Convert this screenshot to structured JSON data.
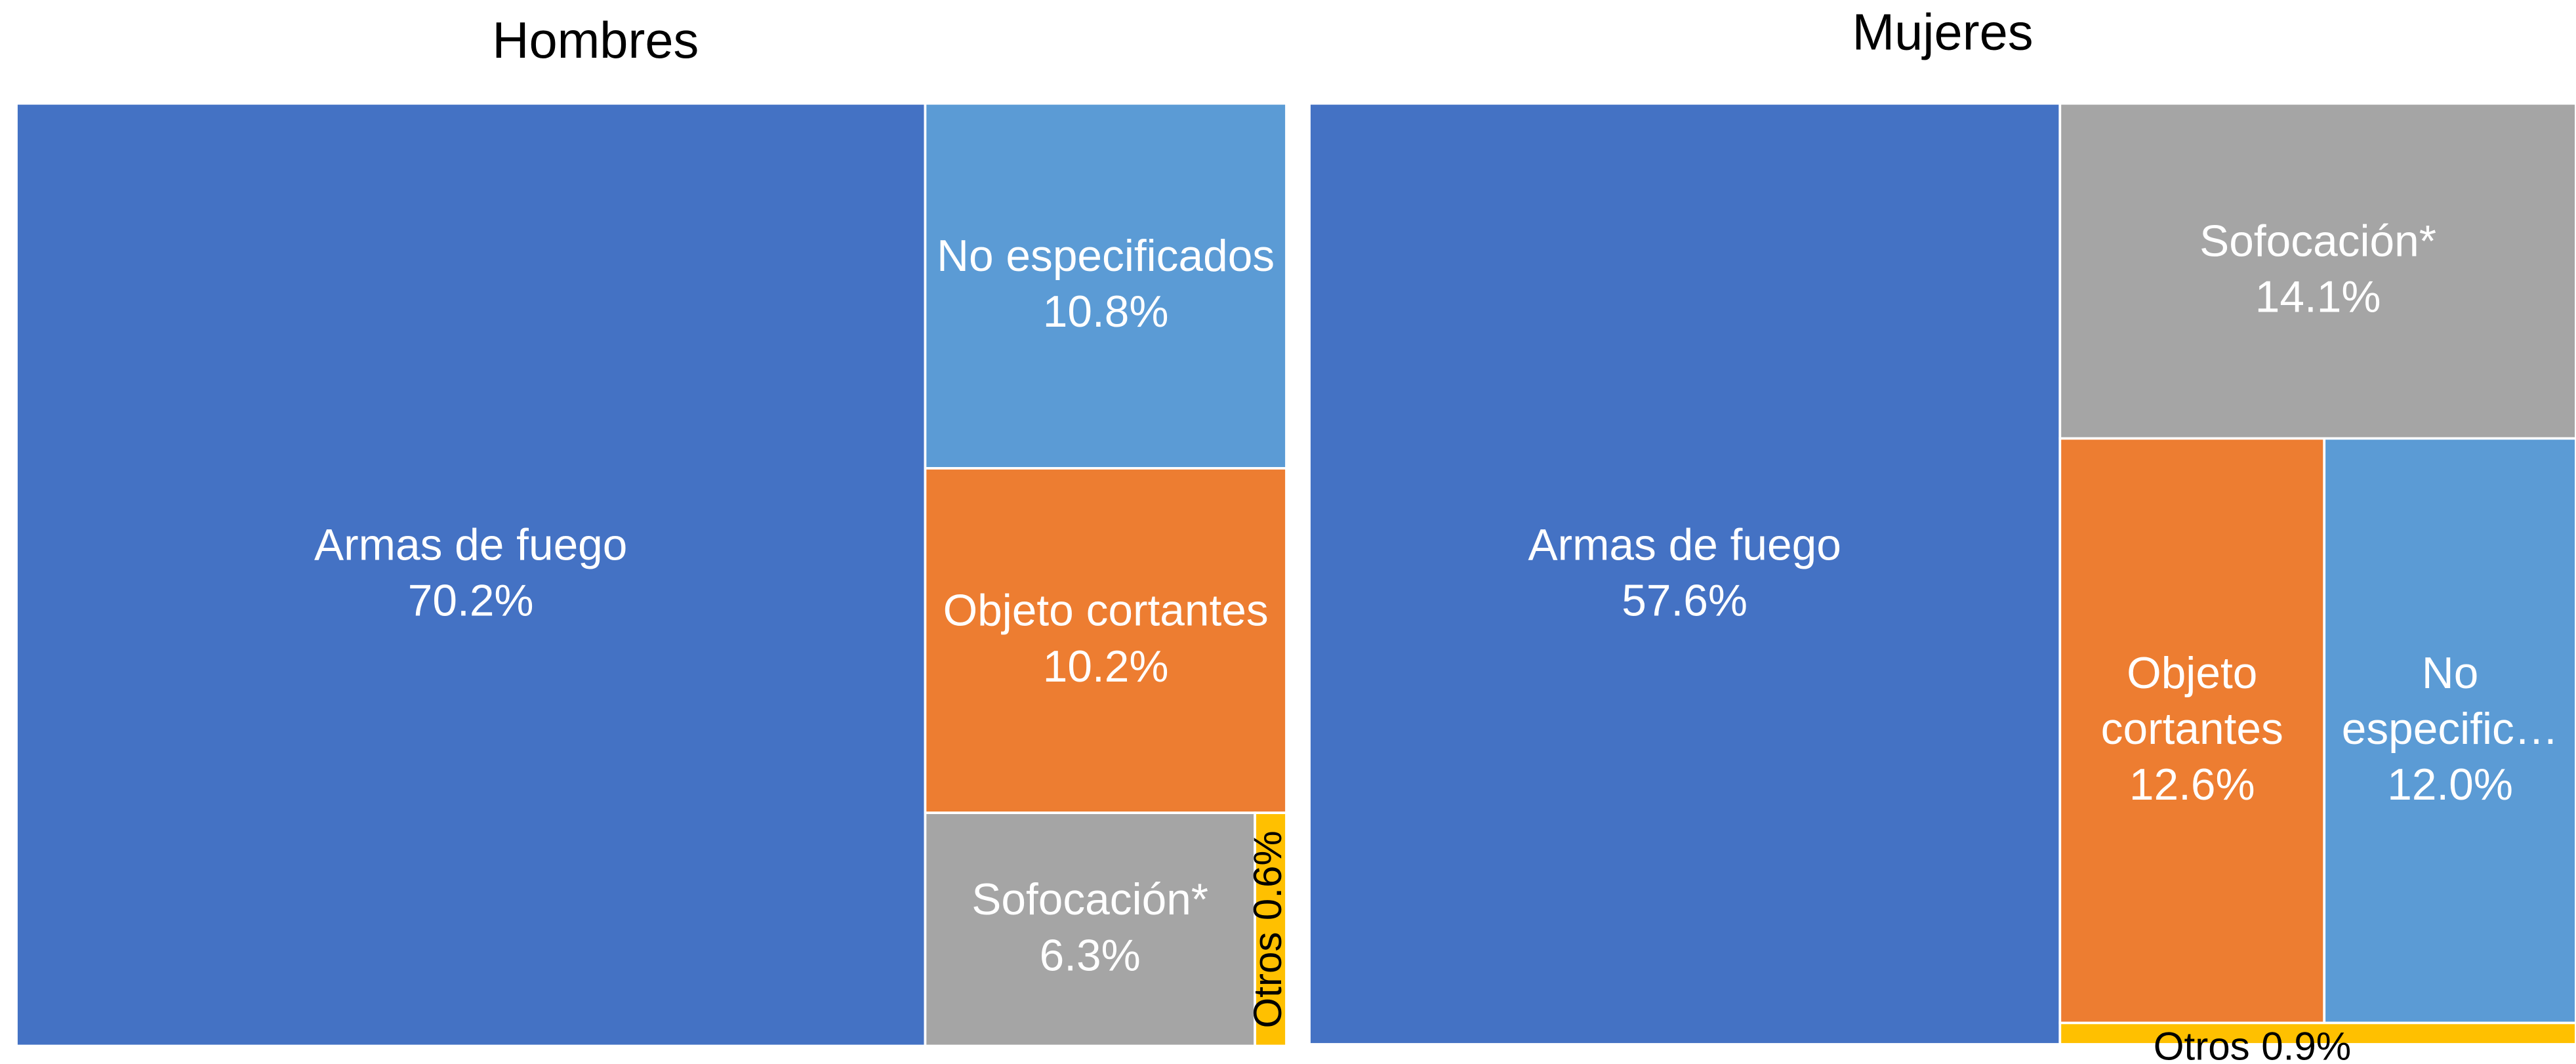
{
  "chart_data": [
    {
      "type": "treemap",
      "title": "Hombres",
      "categories": [
        "Armas de fuego",
        "No especificados",
        "Objeto cortantes",
        "Sofocación*",
        "Otros"
      ],
      "values": [
        70.2,
        10.8,
        10.2,
        6.3,
        0.6
      ],
      "value_labels": [
        "70.2%",
        "10.8%",
        "10.2%",
        "6.3%",
        "0.6%"
      ],
      "colors": [
        "#4472c4",
        "#5b9bd5",
        "#ed7d31",
        "#a5a5a5",
        "#ffc000"
      ],
      "label_colors": [
        "#ffffff",
        "#ffffff",
        "#ffffff",
        "#ffffff",
        "#000000"
      ]
    },
    {
      "type": "treemap",
      "title": "Mujeres",
      "categories": [
        "Armas de fuego",
        "Sofocación*",
        "Objeto cortantes",
        "No especific…",
        "Otros"
      ],
      "values": [
        57.6,
        14.1,
        12.6,
        12.0,
        0.9
      ],
      "value_labels": [
        "57.6%",
        "14.1%",
        "12.6%",
        "12.0%",
        "0.9%"
      ],
      "colors": [
        "#4472c4",
        "#a5a5a5",
        "#ed7d31",
        "#5b9bd5",
        "#ffc000"
      ],
      "label_colors": [
        "#ffffff",
        "#ffffff",
        "#ffffff",
        "#ffffff",
        "#000000"
      ]
    }
  ]
}
